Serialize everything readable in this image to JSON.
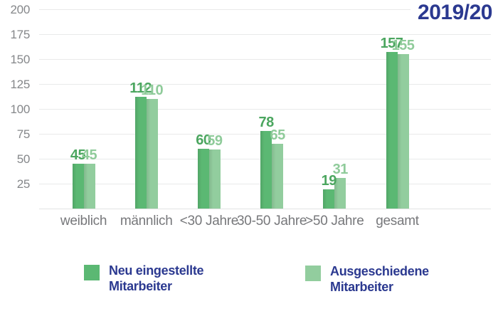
{
  "title": "2019/20",
  "colors": {
    "accent_blue": "#2B3990",
    "series1_bar": "#5BB873",
    "series1_label": "#4BA65F",
    "series2_bar": "#92CD9E",
    "series2_label": "#8FCB9A",
    "axis_text": "#85878A",
    "category_text": "#77787B",
    "gridline": "#E9EAEA",
    "baseline": "#E2E3E4"
  },
  "chart_data": {
    "type": "bar",
    "title": "2019/20",
    "categories": [
      "weiblich",
      "männlich",
      "<30 Jahre",
      "30-50 Jahre",
      ">50 Jahre",
      "gesamt"
    ],
    "series": [
      {
        "name": "Neu eingestellte Mitarbeiter",
        "values": [
          45,
          112,
          60,
          78,
          19,
          157
        ]
      },
      {
        "name": "Ausgeschiedene Mitarbeiter",
        "values": [
          45,
          110,
          59,
          65,
          31,
          155
        ]
      }
    ],
    "xlabel": "",
    "ylabel": "",
    "ylim": [
      0,
      200
    ],
    "yticks": [
      25,
      50,
      75,
      100,
      125,
      150,
      175,
      200
    ],
    "grid": true,
    "data_labels": true,
    "legend_position": "bottom"
  },
  "legend": {
    "items": [
      {
        "label": "Neu eingestellte\nMitarbeiter"
      },
      {
        "label": "Ausgeschiedene\nMitarbeiter"
      }
    ]
  }
}
